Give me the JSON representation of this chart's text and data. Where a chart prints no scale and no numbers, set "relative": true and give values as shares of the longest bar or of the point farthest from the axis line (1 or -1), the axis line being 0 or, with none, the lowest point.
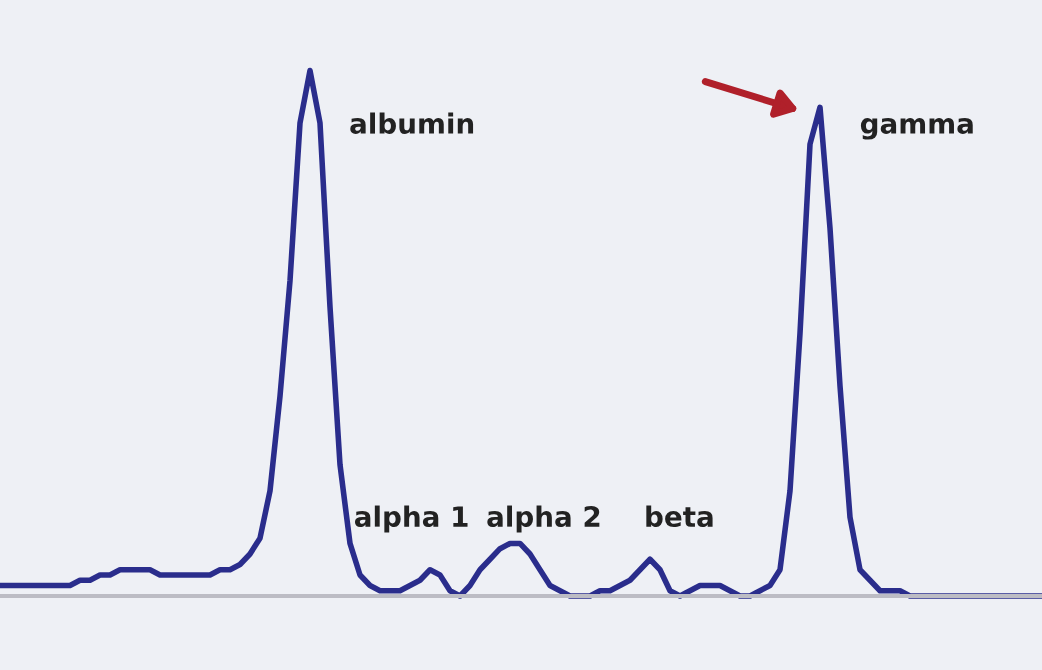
{
  "chart_data": {
    "type": "line",
    "relative": true,
    "color": "#2a2d8c",
    "categories": [
      null,
      null,
      null,
      null,
      null,
      null,
      null,
      null,
      null,
      null,
      null,
      null,
      null,
      null,
      null,
      null,
      null,
      null,
      null,
      null,
      null,
      null,
      null,
      null,
      null,
      null,
      null,
      null,
      null,
      null,
      null,
      null,
      null,
      null,
      null,
      null,
      null,
      null,
      null,
      null,
      null,
      null,
      null,
      null,
      null,
      null,
      null,
      null,
      null,
      null,
      null,
      null,
      null,
      null,
      null,
      null,
      null,
      null,
      null,
      null,
      null,
      null,
      null,
      null,
      null,
      null,
      null,
      null,
      null,
      null,
      null,
      null,
      null,
      null,
      null,
      null,
      null,
      null,
      null,
      null,
      null,
      null,
      null,
      null,
      null,
      null,
      null,
      null,
      null,
      null,
      null,
      null,
      null,
      null,
      null,
      null,
      null,
      null,
      null,
      null,
      null,
      null,
      null,
      null,
      null
    ],
    "values": [
      0.02,
      0.02,
      0.02,
      0.02,
      0.02,
      0.02,
      0.02,
      0.02,
      0.03,
      0.03,
      0.04,
      0.04,
      0.05,
      0.05,
      0.05,
      0.05,
      0.04,
      0.04,
      0.04,
      0.04,
      0.04,
      0.04,
      0.05,
      0.05,
      0.06,
      0.08,
      0.11,
      0.2,
      0.38,
      0.6,
      0.9,
      1,
      0.9,
      0.55,
      0.25,
      0.1,
      0.04,
      0.02,
      0.01,
      0.01,
      0.01,
      0.02,
      0.03,
      0.05,
      0.04,
      0.01,
      0,
      0.02,
      0.05,
      0.07,
      0.09,
      0.1,
      0.1,
      0.08,
      0.05,
      0.02,
      0.01,
      0,
      0,
      0,
      0.01,
      0.01,
      0.02,
      0.03,
      0.05,
      0.07,
      0.05,
      0.01,
      0,
      0.01,
      0.02,
      0.02,
      0.02,
      0.01,
      0,
      0,
      0.01,
      0.02,
      0.05,
      0.2,
      0.5,
      0.86,
      0.93,
      0.7,
      0.4,
      0.15,
      0.05,
      0.03,
      0.01,
      0.01,
      0.01,
      0,
      0,
      0,
      0,
      0,
      0,
      0,
      0,
      0,
      0,
      0,
      0,
      0,
      0
    ],
    "annotations": [
      "albumin",
      "alpha 1",
      "alpha 2",
      "beta",
      "gamma"
    ],
    "grid": false,
    "legend": false,
    "marker": "none",
    "line_style": "solid"
  }
}
